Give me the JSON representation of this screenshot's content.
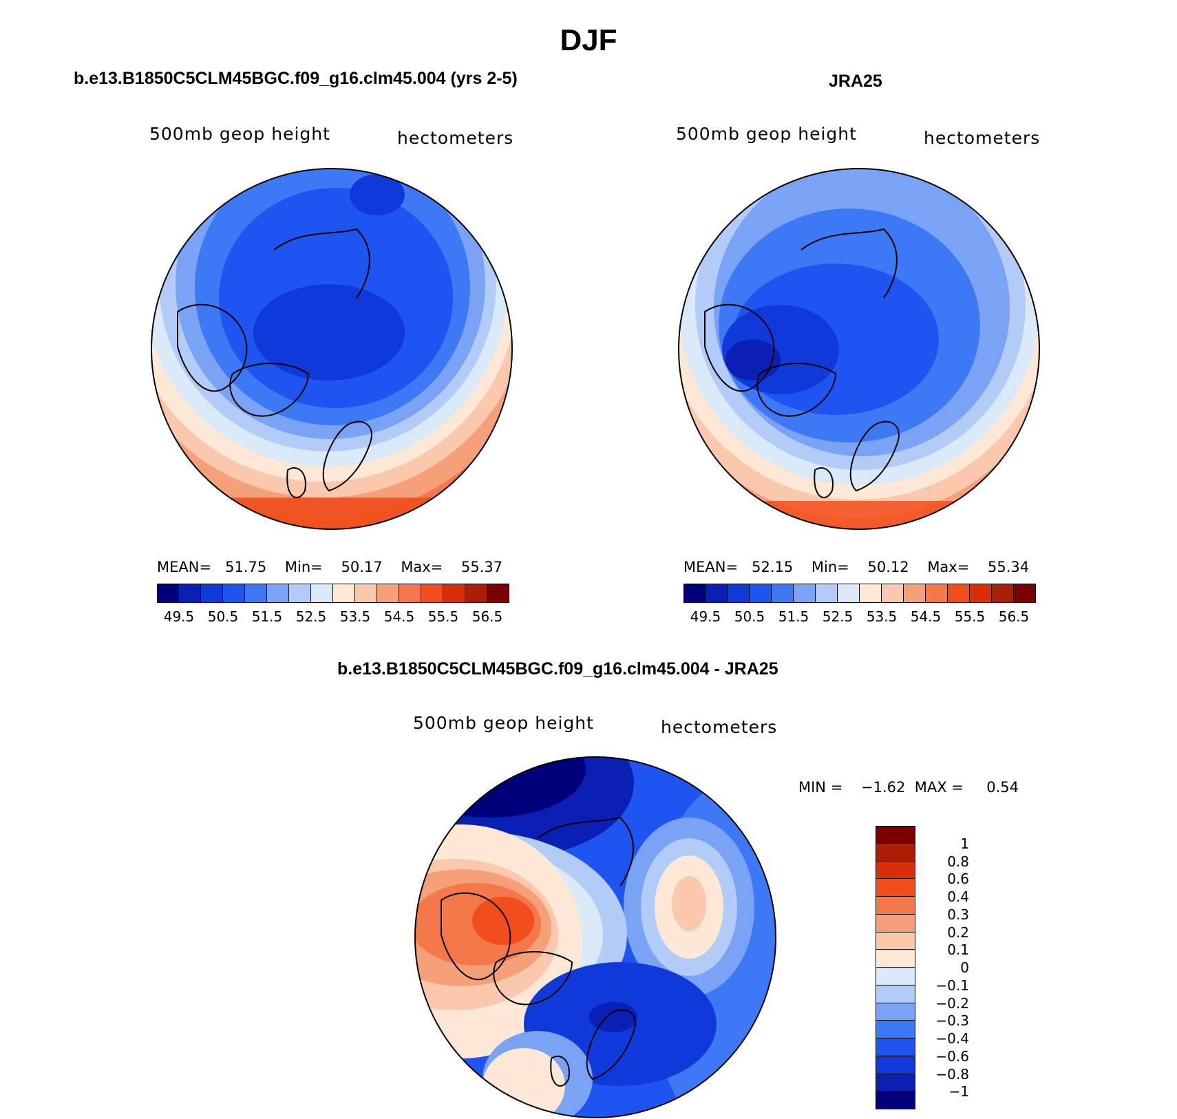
{
  "figure": {
    "title": "DJF",
    "panels": [
      {
        "id": "model",
        "title": "b.e13.B1850C5CLM45BGC.f09_g16.clm45.004 (yrs 2-5)",
        "left_label": "500mb geop height",
        "right_label": "hectometers",
        "stats": {
          "mean_label": "MEAN=",
          "mean": "51.75",
          "min_label": "Min=",
          "min": "50.17",
          "max_label": "Max=",
          "max": "55.37"
        }
      },
      {
        "id": "obs",
        "title": "JRA25",
        "left_label": "500mb geop height",
        "right_label": "hectometers",
        "stats": {
          "mean_label": "MEAN=",
          "mean": "52.15",
          "min_label": "Min=",
          "min": "50.12",
          "max_label": "Max=",
          "max": "55.34"
        }
      },
      {
        "id": "diff",
        "title": "b.e13.B1850C5CLM45BGC.f09_g16.clm45.004 - JRA25",
        "left_label": "500mb geop height",
        "right_label": "hectometers",
        "stats": {
          "min_label": "MIN =",
          "min": "−1.62",
          "max_label": "MAX =",
          "max": "0.54"
        }
      }
    ],
    "field_colorbar": {
      "colors": [
        "#00007a",
        "#0a1fb4",
        "#0f3ad9",
        "#1e55f0",
        "#3d78f5",
        "#7aa3f5",
        "#b2ccf7",
        "#d9e9f8",
        "#fde8d6",
        "#fac8ac",
        "#f6a07a",
        "#f5784a",
        "#f24d1c",
        "#d92e0a",
        "#ab1e06",
        "#7a0000"
      ],
      "tick_labels": [
        "49.5",
        "50.5",
        "51.5",
        "52.5",
        "53.5",
        "54.5",
        "55.5",
        "56.5"
      ]
    },
    "diff_colorbar": {
      "colors": [
        "#00007a",
        "#0a1fb4",
        "#0f3ad9",
        "#1e55f0",
        "#3d78f5",
        "#7aa3f5",
        "#b2ccf7",
        "#d9e9f8",
        "#fde8d6",
        "#fac8ac",
        "#f6a07a",
        "#f5784a",
        "#f24d1c",
        "#d92e0a",
        "#ab1e06",
        "#7a0000"
      ],
      "tick_labels": [
        "1",
        "0.8",
        "0.6",
        "0.4",
        "0.3",
        "0.2",
        "0.1",
        "0",
        "−0.1",
        "−0.2",
        "−0.3",
        "−0.4",
        "−0.6",
        "−0.8",
        "−1"
      ]
    }
  }
}
